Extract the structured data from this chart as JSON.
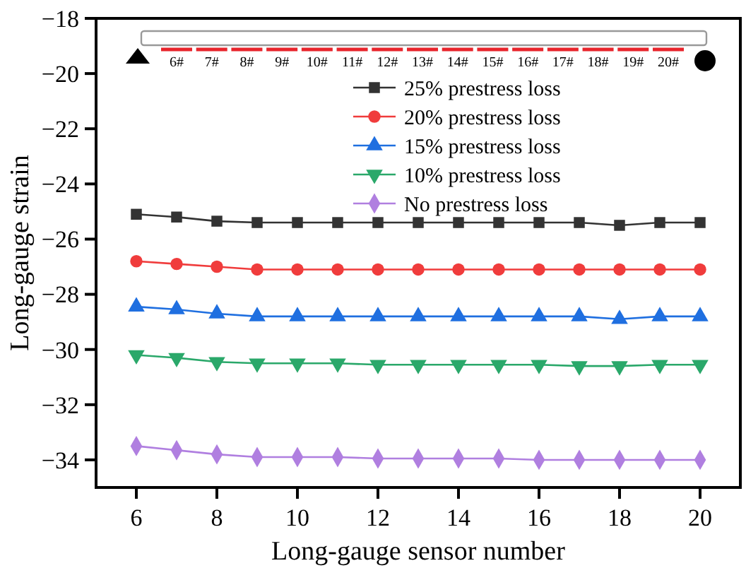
{
  "chart_data": {
    "type": "line",
    "xlabel": "Long-gauge sensor number",
    "ylabel": "Long-gauge strain",
    "x": [
      6,
      7,
      8,
      9,
      10,
      11,
      12,
      13,
      14,
      15,
      16,
      17,
      18,
      19,
      20
    ],
    "xlim": [
      5,
      21
    ],
    "xticks": [
      6,
      8,
      10,
      12,
      14,
      16,
      18,
      20
    ],
    "ylim": [
      -35,
      -18
    ],
    "yticks": [
      -34,
      -32,
      -30,
      -28,
      -26,
      -24,
      -22,
      -20,
      -18
    ],
    "legend": "top",
    "grid": false,
    "line_style": "solid",
    "annotations": [
      "6#",
      "7#",
      "8#",
      "9#",
      "10#",
      "11#",
      "12#",
      "13#",
      "14#",
      "15#",
      "16#",
      "17#",
      "18#",
      "19#",
      "20#"
    ],
    "series": [
      {
        "name": "25% prestress loss",
        "color": "#333333",
        "marker": "square",
        "values": [
          -25.1,
          -25.2,
          -25.35,
          -25.4,
          -25.4,
          -25.4,
          -25.4,
          -25.4,
          -25.4,
          -25.4,
          -25.4,
          -25.4,
          -25.5,
          -25.4,
          -25.4
        ]
      },
      {
        "name": "20% prestress loss",
        "color": "#f03c3c",
        "marker": "circle",
        "values": [
          -26.8,
          -26.9,
          -27.0,
          -27.1,
          -27.1,
          -27.1,
          -27.1,
          -27.1,
          -27.1,
          -27.1,
          -27.1,
          -27.1,
          -27.1,
          -27.1,
          -27.1
        ]
      },
      {
        "name": "15% prestress loss",
        "color": "#1f6fe0",
        "marker": "triangle",
        "values": [
          -28.45,
          -28.55,
          -28.7,
          -28.8,
          -28.8,
          -28.8,
          -28.8,
          -28.8,
          -28.8,
          -28.8,
          -28.8,
          -28.8,
          -28.9,
          -28.8,
          -28.8
        ]
      },
      {
        "name": "10% prestress loss",
        "color": "#2aa86a",
        "marker": "triangle-down",
        "values": [
          -30.2,
          -30.3,
          -30.45,
          -30.5,
          -30.5,
          -30.5,
          -30.55,
          -30.55,
          -30.55,
          -30.55,
          -30.55,
          -30.6,
          -30.6,
          -30.55,
          -30.55
        ]
      },
      {
        "name": "No prestress loss",
        "color": "#b07fe0",
        "marker": "diamond",
        "values": [
          -33.5,
          -33.65,
          -33.8,
          -33.9,
          -33.9,
          -33.9,
          -33.95,
          -33.95,
          -33.95,
          -33.95,
          -34.0,
          -34.0,
          -34.0,
          -34.0,
          -34.0
        ]
      }
    ]
  }
}
